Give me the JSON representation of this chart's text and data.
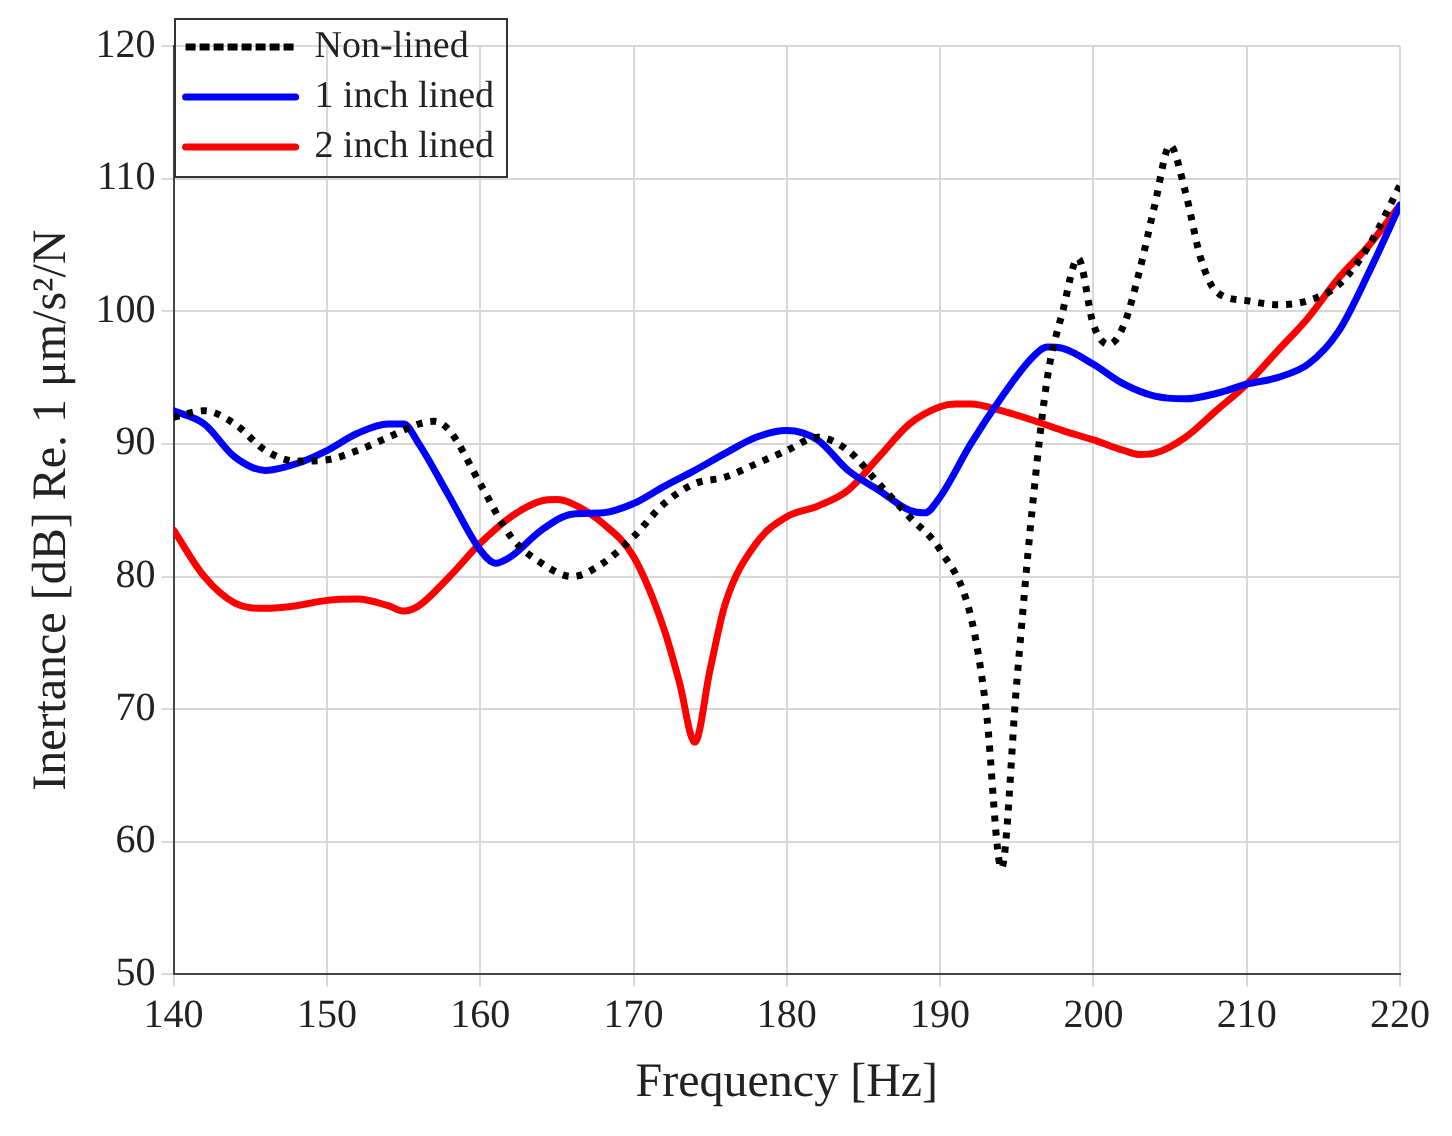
{
  "chart_data": {
    "type": "line",
    "xlabel": "Frequency [Hz]",
    "ylabel": "Inertance [dB] Re. 1 μm/s²/N",
    "xlim": [
      140,
      220
    ],
    "xticks": [
      140,
      150,
      160,
      170,
      180,
      190,
      200,
      210,
      220
    ],
    "ylim": [
      50,
      120
    ],
    "yticks": [
      50,
      60,
      70,
      80,
      90,
      100,
      110,
      120
    ],
    "grid": true,
    "legend": "top left",
    "marker": "none",
    "series": [
      {
        "name": "Non-lined",
        "color": "#000000",
        "line_style": "dotted",
        "x": [
          140,
          142,
          144,
          146,
          148,
          150,
          152,
          154,
          156,
          157,
          158,
          160,
          162,
          164,
          166,
          168,
          170,
          172,
          174,
          176,
          178,
          180,
          182,
          184,
          186,
          188,
          190,
          192,
          193,
          194,
          195,
          196,
          197,
          198,
          199,
          200,
          201,
          202,
          203,
          204,
          205,
          206,
          207,
          208,
          210,
          212,
          214,
          216,
          218,
          220
        ],
        "values": [
          92,
          92.5,
          91.5,
          89.5,
          88.7,
          88.8,
          89.5,
          90.5,
          91.5,
          91.7,
          91,
          87,
          83,
          81,
          80,
          81,
          83,
          85.5,
          87,
          87.5,
          88.5,
          89.5,
          90.5,
          89.5,
          87,
          84.5,
          82,
          77,
          70,
          58,
          72,
          85,
          95,
          100,
          104,
          99,
          97.5,
          99,
          103,
          108,
          112.5,
          109,
          104,
          101.5,
          100.8,
          100.5,
          100.8,
          102,
          105,
          109.5
        ]
      },
      {
        "name": "1 inch lined",
        "color": "#0000ff",
        "line_style": "solid",
        "x": [
          140,
          142,
          144,
          146,
          148,
          150,
          152,
          154,
          155,
          156,
          158,
          160,
          161,
          162,
          164,
          166,
          168,
          170,
          172,
          174,
          176,
          178,
          180,
          182,
          184,
          186,
          188,
          189,
          190,
          192,
          194,
          196,
          197,
          198,
          200,
          202,
          204,
          206,
          208,
          210,
          212,
          214,
          216,
          218,
          220
        ],
        "values": [
          92.5,
          91.5,
          89,
          88,
          88.5,
          89.5,
          90.8,
          91.5,
          91.5,
          90,
          86,
          82,
          81,
          81.5,
          83.5,
          84.7,
          84.8,
          85.5,
          86.8,
          88,
          89.3,
          90.5,
          91,
          90.3,
          88,
          86.5,
          85,
          84.8,
          86,
          90,
          93.5,
          96.5,
          97.3,
          97.2,
          96,
          94.5,
          93.6,
          93.4,
          93.8,
          94.5,
          95,
          96,
          98.5,
          103,
          108
        ]
      },
      {
        "name": "2 inch lined",
        "color": "#ff0000",
        "line_style": "solid",
        "x": [
          140,
          142,
          144,
          146,
          148,
          150,
          152,
          154,
          155,
          156,
          158,
          160,
          162,
          164,
          165,
          166,
          168,
          170,
          172,
          173,
          174,
          175,
          176,
          178,
          180,
          182,
          184,
          186,
          188,
          190,
          191,
          192,
          194,
          196,
          198,
          200,
          202,
          203,
          204,
          206,
          208,
          210,
          212,
          214,
          216,
          218,
          220
        ],
        "values": [
          83.5,
          80,
          78,
          77.6,
          77.8,
          78.2,
          78.3,
          77.8,
          77.4,
          77.8,
          80,
          82.5,
          84.5,
          85.7,
          85.8,
          85.5,
          84,
          81.5,
          76,
          72,
          67.5,
          73,
          78,
          82.5,
          84.5,
          85.3,
          86.5,
          89,
          91.5,
          92.8,
          93,
          93,
          92.5,
          91.8,
          91,
          90.3,
          89.5,
          89.2,
          89.3,
          90.5,
          92.5,
          94.5,
          97,
          99.5,
          102.5,
          105,
          108
        ]
      }
    ]
  }
}
